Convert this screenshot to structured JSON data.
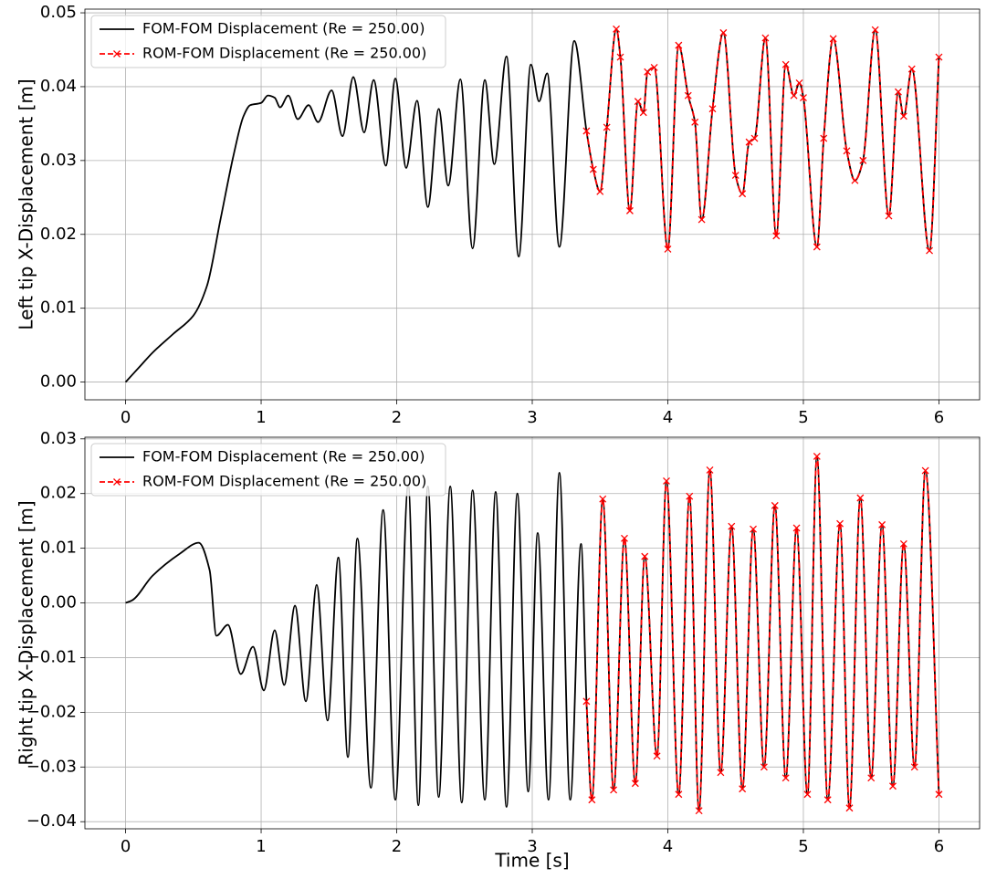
{
  "chart_data": [
    {
      "type": "line",
      "y_label": "Left tip X-Displacement [m]",
      "grid": true,
      "legend": "upper left",
      "xlim": [
        -0.3,
        6.3
      ],
      "xticks": [
        0,
        1,
        2,
        3,
        4,
        5,
        6
      ],
      "ylim": [
        -0.0024,
        0.0505
      ],
      "yticks": [
        {
          "value": 0,
          "label": "0.00"
        },
        {
          "value": 0.01,
          "label": "0.01"
        },
        {
          "value": 0.02,
          "label": "0.02"
        },
        {
          "value": 0.03,
          "label": "0.03"
        },
        {
          "value": 0.04,
          "label": "0.04"
        },
        {
          "value": 0.05,
          "label": "0.05"
        }
      ],
      "x": [
        0,
        0.1,
        0.2,
        0.35,
        0.5,
        0.6,
        0.7,
        0.8,
        0.87,
        0.92,
        1.0,
        1.05,
        1.1,
        1.14,
        1.2,
        1.27,
        1.35,
        1.42,
        1.52,
        1.6,
        1.68,
        1.76,
        1.83,
        1.92,
        1.99,
        2.07,
        2.15,
        2.23,
        2.31,
        2.38,
        2.47,
        2.56,
        2.65,
        2.72,
        2.81,
        2.9,
        2.99,
        3.05,
        3.11,
        3.2,
        3.31,
        3.4,
        3.45,
        3.5,
        3.55,
        3.62,
        3.65,
        3.72,
        3.78,
        3.82,
        3.85,
        3.9,
        4.0,
        4.08,
        4.15,
        4.2,
        4.25,
        4.33,
        4.41,
        4.5,
        4.55,
        4.6,
        4.64,
        4.72,
        4.8,
        4.87,
        4.93,
        4.97,
        5.0,
        5.1,
        5.15,
        5.22,
        5.32,
        5.38,
        5.44,
        5.53,
        5.63,
        5.7,
        5.74,
        5.8,
        5.93,
        6.0
      ],
      "series": [
        {
          "name": "FOM-FOM Displacement (Re = 250.00)",
          "color": "#000000",
          "style": "solid",
          "marker": "none",
          "values": [
            0,
            0.002,
            0.004,
            0.0065,
            0.009,
            0.013,
            0.022,
            0.031,
            0.036,
            0.0375,
            0.0378,
            0.0388,
            0.0385,
            0.0372,
            0.0388,
            0.0356,
            0.0375,
            0.0352,
            0.0395,
            0.0333,
            0.0413,
            0.0338,
            0.0409,
            0.0293,
            0.0411,
            0.029,
            0.0381,
            0.0237,
            0.037,
            0.0266,
            0.041,
            0.0181,
            0.0409,
            0.0295,
            0.0441,
            0.017,
            0.043,
            0.038,
            0.0418,
            0.0183,
            0.0462,
            0.034,
            0.0288,
            0.0258,
            0.0345,
            0.0478,
            0.044,
            0.0232,
            0.038,
            0.0365,
            0.042,
            0.0426,
            0.018,
            0.0456,
            0.0388,
            0.0352,
            0.022,
            0.037,
            0.0473,
            0.028,
            0.0255,
            0.0325,
            0.033,
            0.0466,
            0.0198,
            0.043,
            0.0388,
            0.0405,
            0.0385,
            0.0183,
            0.033,
            0.0465,
            0.0313,
            0.0273,
            0.03,
            0.0477,
            0.0225,
            0.0393,
            0.036,
            0.0424,
            0.0178,
            0.044
          ]
        },
        {
          "name": "ROM-FOM Displacement (Re = 250.00)",
          "color": "#ff0000",
          "style": "dashed",
          "marker": "x",
          "values": [
            null,
            null,
            null,
            null,
            null,
            null,
            null,
            null,
            null,
            null,
            null,
            null,
            null,
            null,
            null,
            null,
            null,
            null,
            null,
            null,
            null,
            null,
            null,
            null,
            null,
            null,
            null,
            null,
            null,
            null,
            null,
            null,
            null,
            null,
            null,
            null,
            null,
            null,
            null,
            null,
            null,
            0.034,
            0.0288,
            0.0258,
            0.0345,
            0.0478,
            0.044,
            0.0232,
            0.038,
            0.0365,
            0.042,
            0.0426,
            0.018,
            0.0456,
            0.0388,
            0.0352,
            0.022,
            0.037,
            0.0473,
            0.028,
            0.0255,
            0.0325,
            0.033,
            0.0466,
            0.0198,
            0.043,
            0.0388,
            0.0405,
            0.0385,
            0.0183,
            0.033,
            0.0465,
            0.0313,
            0.0273,
            0.03,
            0.0477,
            0.0225,
            0.0393,
            0.036,
            0.0424,
            0.0178,
            0.044
          ]
        }
      ]
    },
    {
      "type": "line",
      "y_label": "Right tip X-Displacement [m]",
      "x_label": "Time [s]",
      "grid": true,
      "legend": "upper left",
      "xlim": [
        -0.3,
        6.3
      ],
      "xticks": [
        0,
        1,
        2,
        3,
        4,
        5,
        6
      ],
      "ylim": [
        -0.0413,
        0.0303
      ],
      "yticks": [
        {
          "value": -0.04,
          "label": "−0.04"
        },
        {
          "value": -0.03,
          "label": "−0.03"
        },
        {
          "value": -0.02,
          "label": "−0.02"
        },
        {
          "value": -0.01,
          "label": "−0.01"
        },
        {
          "value": 0,
          "label": "0.00"
        },
        {
          "value": 0.01,
          "label": "0.01"
        },
        {
          "value": 0.02,
          "label": "0.02"
        },
        {
          "value": 0.03,
          "label": "0.03"
        }
      ],
      "x": [
        0,
        0.05,
        0.2,
        0.4,
        0.54,
        0.62,
        0.67,
        0.755,
        0.85,
        0.94,
        1.02,
        1.1,
        1.17,
        1.25,
        1.33,
        1.41,
        1.49,
        1.57,
        1.64,
        1.71,
        1.81,
        1.9,
        1.99,
        2.085,
        2.16,
        2.23,
        2.31,
        2.395,
        2.48,
        2.56,
        2.65,
        2.73,
        2.81,
        2.89,
        2.97,
        3.04,
        3.12,
        3.2,
        3.28,
        3.36,
        3.4,
        3.44,
        3.52,
        3.6,
        3.68,
        3.76,
        3.83,
        3.92,
        3.99,
        4.08,
        4.16,
        4.23,
        4.31,
        4.39,
        4.47,
        4.55,
        4.63,
        4.71,
        4.79,
        4.87,
        4.95,
        5.03,
        5.1,
        5.18,
        5.27,
        5.34,
        5.42,
        5.5,
        5.58,
        5.66,
        5.74,
        5.82,
        5.9,
        6.0
      ],
      "series": [
        {
          "name": "FOM-FOM Displacement (Re = 250.00)",
          "color": "#000000",
          "style": "solid",
          "marker": "none",
          "values": [
            0,
            0.0005,
            0.005,
            0.009,
            0.011,
            0.006,
            -0.006,
            -0.004,
            -0.013,
            -0.008,
            -0.016,
            -0.005,
            -0.015,
            -0.0005,
            -0.018,
            0.0033,
            -0.0215,
            0.0083,
            -0.0282,
            0.0118,
            -0.0338,
            0.017,
            -0.036,
            0.0215,
            -0.037,
            0.0213,
            -0.0355,
            0.0213,
            -0.0365,
            0.0206,
            -0.036,
            0.0203,
            -0.0373,
            0.02,
            -0.0345,
            0.0128,
            -0.036,
            0.0238,
            -0.036,
            0.0108,
            -0.018,
            -0.036,
            0.019,
            -0.0342,
            0.0118,
            -0.033,
            0.0085,
            -0.028,
            0.0223,
            -0.035,
            0.0195,
            -0.038,
            0.0243,
            -0.031,
            0.014,
            -0.034,
            0.0135,
            -0.03,
            0.0178,
            -0.032,
            0.0137,
            -0.035,
            0.0268,
            -0.036,
            0.0145,
            -0.0375,
            0.0192,
            -0.032,
            0.0143,
            -0.0335,
            0.0108,
            -0.03,
            0.0242,
            -0.035
          ]
        },
        {
          "name": "ROM-FOM Displacement (Re = 250.00)",
          "color": "#ff0000",
          "style": "dashed",
          "marker": "x",
          "values": [
            null,
            null,
            null,
            null,
            null,
            null,
            null,
            null,
            null,
            null,
            null,
            null,
            null,
            null,
            null,
            null,
            null,
            null,
            null,
            null,
            null,
            null,
            null,
            null,
            null,
            null,
            null,
            null,
            null,
            null,
            null,
            null,
            null,
            null,
            null,
            null,
            null,
            null,
            null,
            null,
            -0.018,
            -0.036,
            0.019,
            -0.0342,
            0.0118,
            -0.033,
            0.0085,
            -0.028,
            0.0223,
            -0.035,
            0.0195,
            -0.038,
            0.0243,
            -0.031,
            0.014,
            -0.034,
            0.0135,
            -0.03,
            0.0178,
            -0.032,
            0.0137,
            -0.035,
            0.0268,
            -0.036,
            0.0145,
            -0.0375,
            0.0192,
            -0.032,
            0.0143,
            -0.0335,
            0.0108,
            -0.03,
            0.0242,
            -0.035
          ]
        }
      ]
    }
  ]
}
